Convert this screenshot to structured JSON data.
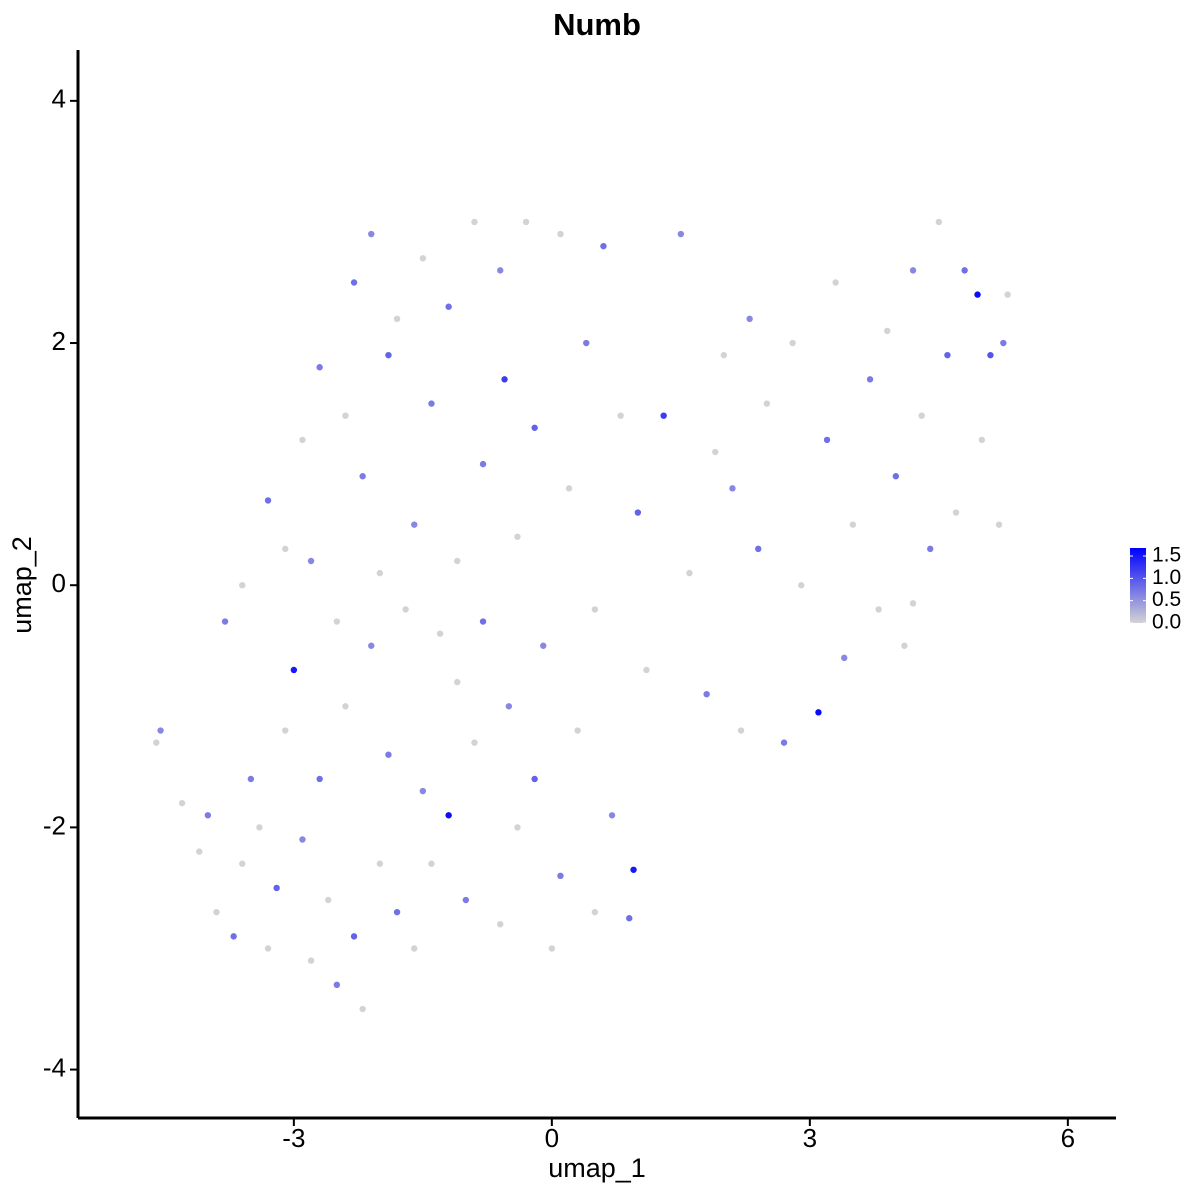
{
  "chart_data": {
    "type": "scatter",
    "title": "Numb",
    "x_label": "umap_1",
    "y_label": "umap_2",
    "xlim": [
      -5.51,
      6.56
    ],
    "ylim": [
      -4.4,
      4.42
    ],
    "xticks": [
      -3,
      0,
      3,
      6
    ],
    "yticks": [
      -4,
      -2,
      0,
      2,
      4
    ],
    "color_scale": {
      "low": "#d3d3d3",
      "high": "#0000ff",
      "lim": [
        0,
        1.68
      ],
      "ticks": [
        {
          "value": 0,
          "label": "0.0"
        },
        0.5,
        {
          "value": 1,
          "label": "1.0"
        },
        1.5
      ]
    },
    "x": [
      -4.6,
      -4.55,
      -4.3,
      -4.1,
      -4.0,
      -3.9,
      -3.7,
      -3.6,
      -3.5,
      -3.4,
      -3.3,
      -3.2,
      -3.1,
      -3.0,
      -2.9,
      -2.8,
      -2.7,
      -2.6,
      -2.5,
      -2.4,
      -2.3,
      -2.2,
      -2.1,
      -2.0,
      -1.9,
      -1.8,
      -1.7,
      -1.6,
      -1.5,
      -1.4,
      -1.2,
      -1.1,
      -1.0,
      -0.9,
      -0.8,
      -0.6,
      -0.5,
      -0.4,
      -0.2,
      0.0,
      0.1,
      0.3,
      0.5,
      0.7,
      0.95,
      0.9,
      -3.8,
      -3.6,
      -3.3,
      -3.1,
      -2.9,
      -2.8,
      -2.7,
      -2.5,
      -2.4,
      -2.3,
      -2.2,
      -2.1,
      -2.0,
      -1.9,
      -1.8,
      -1.6,
      -1.5,
      -1.4,
      -1.3,
      -1.2,
      -1.1,
      -0.9,
      -0.8,
      -0.6,
      -0.55,
      -0.4,
      -0.3,
      -0.2,
      -0.1,
      0.1,
      0.2,
      0.4,
      0.5,
      0.6,
      0.8,
      1.0,
      1.1,
      1.3,
      1.5,
      1.6,
      1.8,
      2.0,
      2.1,
      2.2,
      2.4,
      2.5,
      2.7,
      2.8,
      2.9,
      3.1,
      3.2,
      3.3,
      3.4,
      3.5,
      3.7,
      3.8,
      3.9,
      4.0,
      4.1,
      4.2,
      4.3,
      4.4,
      4.5,
      4.6,
      4.7,
      4.8,
      4.95,
      5.0,
      5.1,
      5.2,
      5.3,
      5.25,
      4.2,
      2.3,
      1.9
    ],
    "y": [
      -1.3,
      -1.2,
      -1.8,
      -2.2,
      -1.9,
      -2.7,
      -2.9,
      -2.3,
      -1.6,
      -2.0,
      -3.0,
      -2.5,
      -1.2,
      -0.7,
      -2.1,
      -3.1,
      -1.6,
      -2.6,
      -3.3,
      -1.0,
      -2.9,
      -3.5,
      -0.5,
      -2.3,
      -1.4,
      -2.7,
      -0.2,
      -3.0,
      -1.7,
      -2.3,
      -1.9,
      -0.8,
      -2.6,
      -1.3,
      -0.3,
      -2.8,
      -1.0,
      -2.0,
      -1.6,
      -3.0,
      -2.4,
      -1.2,
      -2.7,
      -1.9,
      -2.35,
      -2.75,
      -0.3,
      0.0,
      0.7,
      0.3,
      1.2,
      0.2,
      1.8,
      -0.3,
      1.4,
      2.5,
      0.9,
      2.9,
      0.1,
      1.9,
      2.2,
      0.5,
      2.7,
      1.5,
      -0.4,
      2.3,
      0.2,
      3.0,
      1.0,
      2.6,
      1.7,
      0.4,
      3.0,
      1.3,
      -0.5,
      2.9,
      0.8,
      2.0,
      -0.2,
      2.8,
      1.4,
      0.6,
      -0.7,
      1.4,
      2.9,
      0.1,
      -0.9,
      1.9,
      0.8,
      -1.2,
      0.3,
      1.5,
      -1.3,
      2.0,
      0.0,
      -1.05,
      1.2,
      2.5,
      -0.6,
      0.5,
      1.7,
      -0.2,
      2.1,
      0.9,
      -0.5,
      2.6,
      1.4,
      0.3,
      3.0,
      1.9,
      0.6,
      2.6,
      2.4,
      1.2,
      1.9,
      0.5,
      2.4,
      2.0,
      -0.15,
      2.2,
      1.1
    ],
    "values": [
      0,
      0.6,
      0,
      0,
      0.7,
      0,
      0.8,
      0,
      0.7,
      0,
      0,
      0.9,
      0,
      1.5,
      0.6,
      0,
      0.8,
      0,
      0.7,
      0,
      0.9,
      0,
      0.6,
      0,
      0.7,
      0.8,
      0,
      0,
      0.6,
      0,
      1.6,
      0,
      0.7,
      0,
      0.8,
      0,
      0.6,
      0,
      0.9,
      0,
      0.7,
      0,
      0,
      0.6,
      1.5,
      0.8,
      0.7,
      0,
      0.8,
      0,
      0,
      0.6,
      0.7,
      0,
      0,
      0.8,
      0.7,
      0.6,
      0,
      0.9,
      0,
      0.6,
      0,
      0.7,
      0,
      0.8,
      0,
      0,
      0.7,
      0.6,
      1.2,
      0,
      0,
      0.9,
      0.6,
      0,
      0,
      0.7,
      0,
      0.8,
      0,
      0.9,
      0,
      1.2,
      0.6,
      0,
      0.7,
      0,
      0.6,
      0,
      0.8,
      0,
      0.7,
      0,
      0,
      1.6,
      0.8,
      0,
      0.6,
      0,
      0.7,
      0,
      0,
      0.8,
      0,
      0.6,
      0,
      0.7,
      0,
      0.9,
      0,
      0.8,
      1.6,
      0,
      1.0,
      0,
      0,
      0.7,
      0,
      0.6,
      0
    ]
  }
}
